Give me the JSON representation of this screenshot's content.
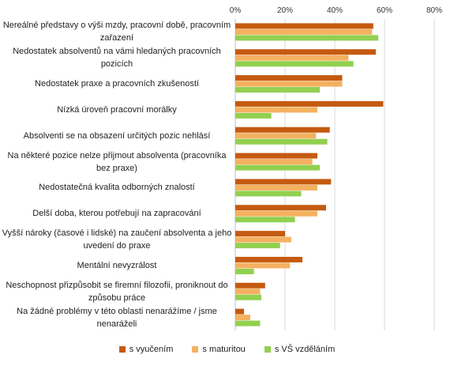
{
  "chart_data": {
    "type": "bar",
    "orientation": "horizontal",
    "categories": [
      "Nereálné představy o výši mzdy, pracovní době, pracovním zařazení",
      "Nedostatek absolventů na vámi hledaných pracovních pozicích",
      "Nedostatek praxe a pracovních zkušeností",
      "Nízká úroveň pracovní morálky",
      "Absolventi se na obsazení určitých pozic nehlásí",
      "Na některé pozice nelze přijmout absolventa (pracovníka bez praxe)",
      "Nedostatečná kvalita odborných znalostí",
      "Delší doba, kterou potřebují na zapracování",
      "Vyšší nároky (časové i lidské) na zaučení absolventa a jeho uvedení do praxe",
      "Mentální nevyzrálost",
      "Neschopnost přizpůsobit se firemní filozofii, proniknout do způsobu práce",
      "Na žádné problémy v této oblasti nenarážíme / jsme nenaráželi"
    ],
    "series": [
      {
        "name": "s vyučením",
        "color": "#c55a11",
        "values": [
          55.5,
          56.5,
          43,
          59.5,
          38,
          33,
          38.5,
          36.5,
          20,
          27,
          12,
          3.5
        ]
      },
      {
        "name": "s maturitou",
        "color": "#f4b160",
        "values": [
          55,
          45.5,
          43,
          33,
          32.5,
          31,
          33,
          33,
          22.5,
          22,
          10,
          6
        ]
      },
      {
        "name": "s VŠ vzděláním",
        "color": "#92d050",
        "values": [
          57.5,
          47.5,
          34,
          14.5,
          37,
          34,
          26.5,
          24,
          18,
          7.5,
          10.5,
          10
        ]
      }
    ],
    "xlim": [
      0,
      80
    ],
    "xticks": [
      "0%",
      "20%",
      "40%",
      "60%",
      "80%"
    ],
    "grid": true,
    "legend_position": "bottom"
  }
}
